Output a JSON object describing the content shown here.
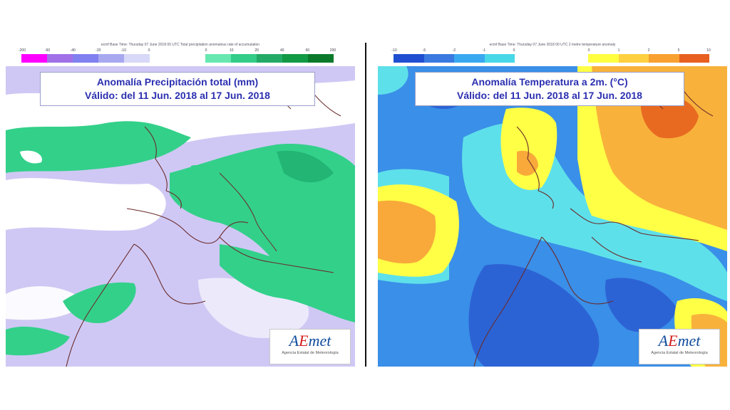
{
  "left_map": {
    "colorbar_title": "ecmf Base Time: Thursday 07 June 2018 00 UTC Total precipitation anomalous rate of accumulation",
    "neg_ticks": [
      "-200",
      "-60",
      "-40",
      "-20",
      "-10",
      "0"
    ],
    "pos_ticks": [
      "0",
      "10",
      "20",
      "40",
      "60",
      "200"
    ],
    "neg_colors": [
      "#ff00ff",
      "#a070e8",
      "#8080f0",
      "#a8a8f0",
      "#d8d8f8"
    ],
    "pos_colors": [
      "#66e8b0",
      "#33cc88",
      "#22aa66",
      "#119944",
      "#0a7a2a"
    ],
    "title_line1": "Anomalía Precipitación total (mm)",
    "title_line2": "Válido: del 11 Jun. 2018 al 17 Jun. 2018",
    "logo_main": "AEmet",
    "logo_sub": "Agencia Estatal de Meteorología"
  },
  "right_map": {
    "colorbar_title": "ecmf Base Time: Thursday 07 June 2018 00 UTC 2 metre temperature anomaly",
    "neg_ticks": [
      "-10",
      "-5",
      "-2",
      "-1",
      "0"
    ],
    "pos_ticks": [
      "0",
      "1",
      "2",
      "5",
      "10"
    ],
    "neg_colors": [
      "#1f4fd0",
      "#3a7ae0",
      "#3aa8f0",
      "#48d8e8"
    ],
    "pos_colors": [
      "#ffff40",
      "#ffd040",
      "#f8a030",
      "#e86020"
    ],
    "title_line1": "Anomalía Temperatura a 2m. (°C)",
    "title_line2": "Válido: del 11 Jun. 2018 al 17 Jun. 2018",
    "logo_main": "AEmet",
    "logo_sub": "Agencia Estatal de Meteorología"
  }
}
